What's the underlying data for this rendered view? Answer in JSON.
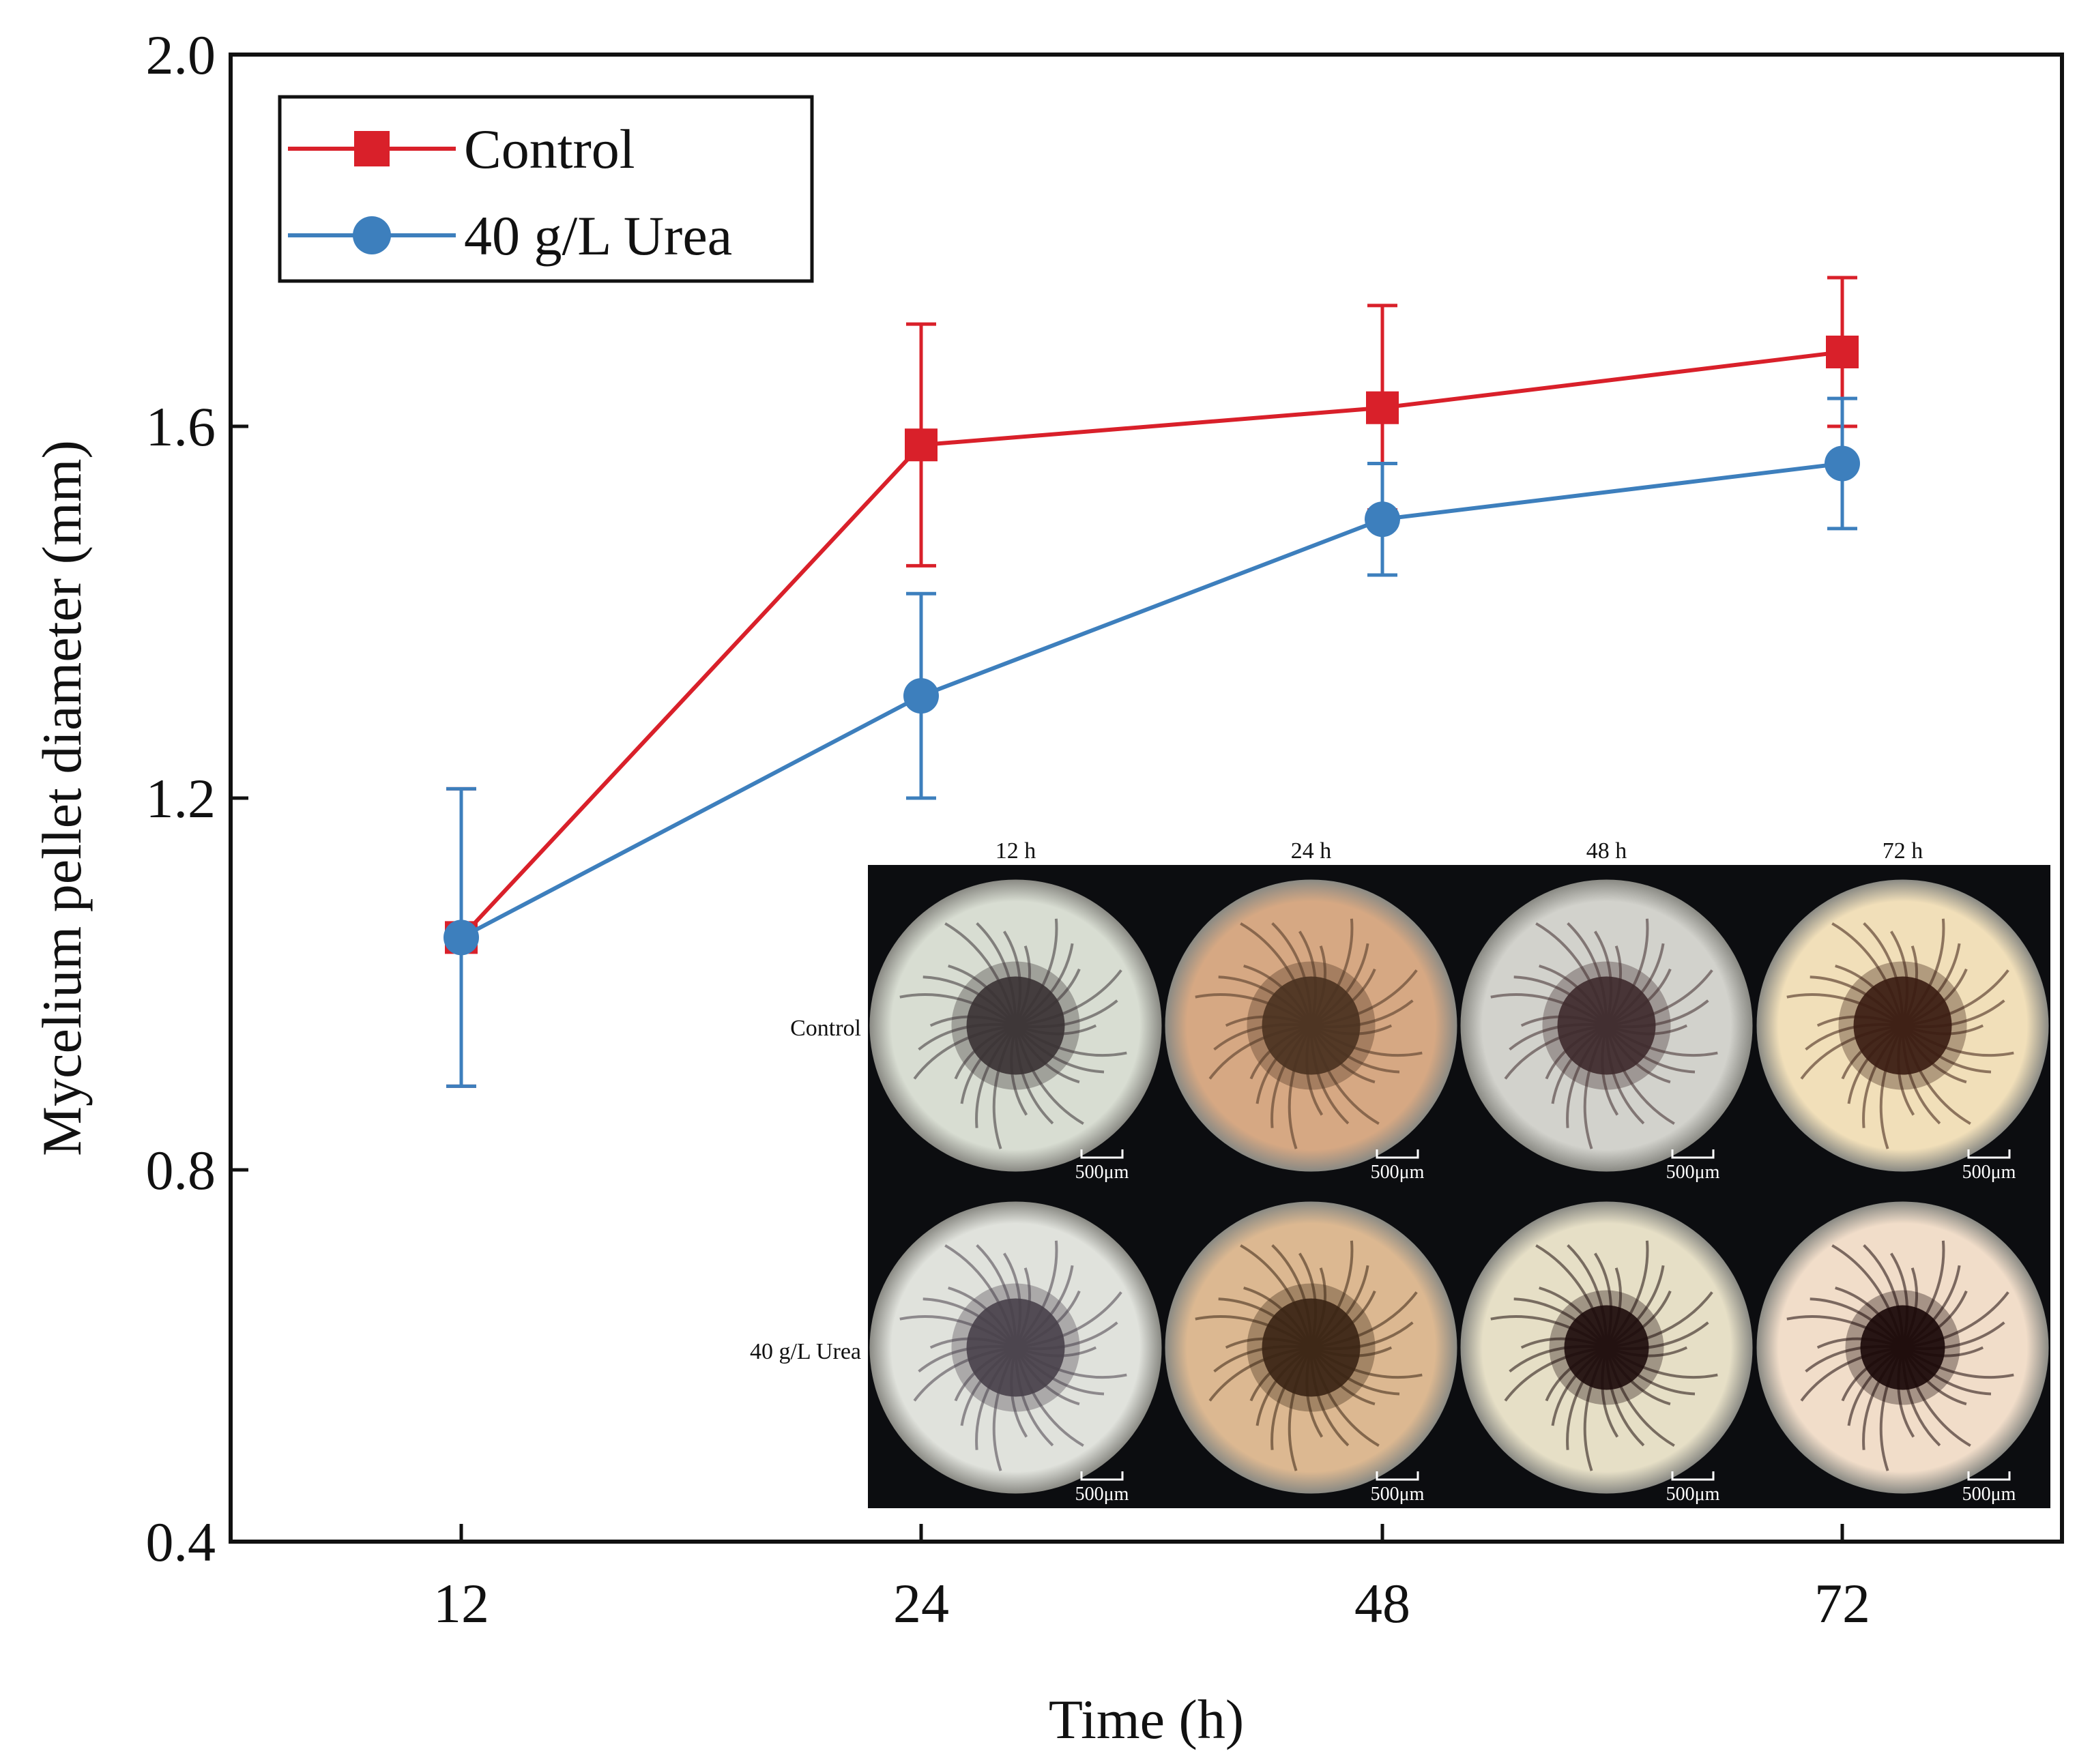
{
  "chart_data": {
    "type": "line",
    "title": "",
    "xlabel": "Time (h)",
    "ylabel": "Mycelium pellet diameter (mm)",
    "categories": [
      "12",
      "24",
      "48",
      "72"
    ],
    "ylim": [
      0.4,
      2.0
    ],
    "yticks": [
      "0.4",
      "0.8",
      "1.2",
      "1.6",
      "2.0"
    ],
    "grid": false,
    "legend_position": "top-left",
    "series": [
      {
        "name": "Control",
        "color": "#d9202a",
        "marker": "square",
        "values": [
          1.05,
          1.58,
          1.62,
          1.68
        ],
        "errors": [
          0.16,
          0.13,
          0.11,
          0.08
        ]
      },
      {
        "name": "40 g/L Urea",
        "color": "#3d7fbd",
        "marker": "circle",
        "values": [
          1.05,
          1.31,
          1.5,
          1.56
        ],
        "errors": [
          0.16,
          0.11,
          0.06,
          0.07
        ]
      }
    ]
  },
  "inset": {
    "column_labels": [
      "12 h",
      "24 h",
      "48 h",
      "72 h"
    ],
    "row_labels": [
      "Control",
      "40 g/L Urea"
    ],
    "scale_bar_label": "500μm",
    "tints": [
      [
        "#d8ddd2",
        "#d6a883",
        "#d2d2cc",
        "#f1dfb9"
      ],
      [
        "#e0e2dc",
        "#dcb891",
        "#e6dfc6",
        "#f1ddc9"
      ]
    ],
    "core_colors": [
      [
        "#3a3234",
        "#4a3220",
        "#3e2a2c",
        "#3a1c12"
      ],
      [
        "#48404a",
        "#3a2414",
        "#1e0c0c",
        "#1a0808"
      ]
    ]
  }
}
